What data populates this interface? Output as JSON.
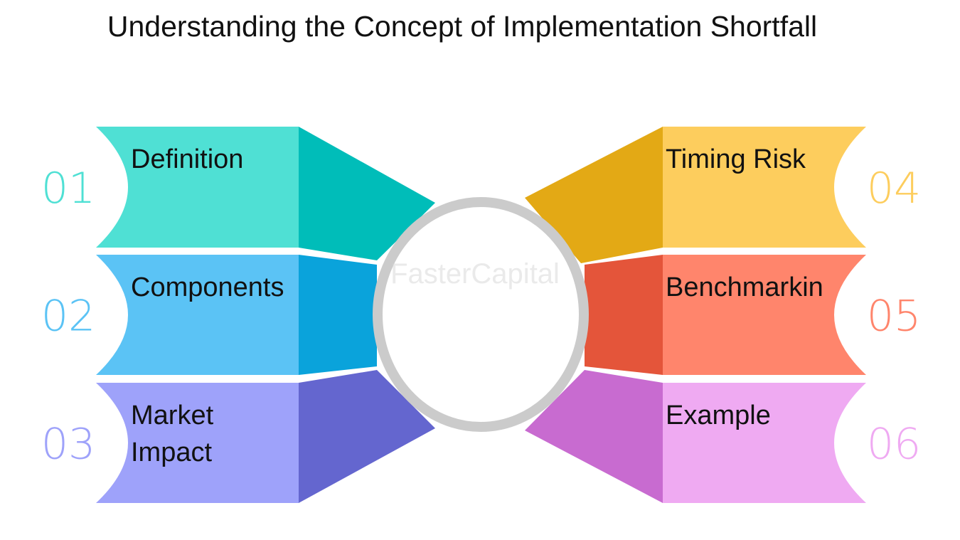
{
  "title": "Understanding the Concept of Implementation Shortfall",
  "watermark": "FasterCapital",
  "items": [
    {
      "number": "01",
      "label_lines": [
        "Definition"
      ],
      "side": "left",
      "colors": {
        "main": "#4fe0d4",
        "dark": "#00bdb9",
        "number": "#4fe0d4"
      }
    },
    {
      "number": "02",
      "label_lines": [
        "Components"
      ],
      "side": "left",
      "colors": {
        "main": "#5bc3f5",
        "dark": "#0aa3db",
        "number": "#5bc3f5"
      }
    },
    {
      "number": "03",
      "label_lines": [
        "Market",
        "Impact"
      ],
      "side": "left",
      "colors": {
        "main": "#9ea2fa",
        "dark": "#6466cf",
        "number": "#9ea2fa"
      }
    },
    {
      "number": "04",
      "label_lines": [
        "Timing Risk"
      ],
      "side": "right",
      "colors": {
        "main": "#fdcd5d",
        "dark": "#e3a915",
        "number": "#fdcd5d"
      }
    },
    {
      "number": "05",
      "label_lines": [
        "Benchmarkin"
      ],
      "side": "right",
      "colors": {
        "main": "#ff856c",
        "dark": "#e4553a",
        "number": "#ff856c"
      }
    },
    {
      "number": "06",
      "label_lines": [
        "Example"
      ],
      "side": "right",
      "colors": {
        "main": "#efaaf2",
        "dark": "#c86bd0",
        "number": "#efaaf2"
      }
    }
  ],
  "ring": {
    "stroke": "#cbcbcb",
    "fill": "#ffffff"
  }
}
